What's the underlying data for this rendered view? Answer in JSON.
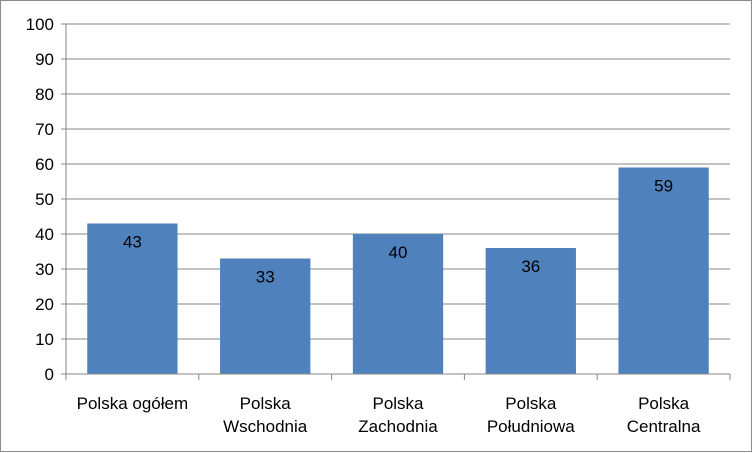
{
  "chart_data": {
    "type": "bar",
    "categories": [
      [
        "Polska ogółem"
      ],
      [
        "Polska",
        "Wschodnia"
      ],
      [
        "Polska",
        "Zachodnia"
      ],
      [
        "Polska",
        "Południowa"
      ],
      [
        "Polska",
        "Centralna"
      ]
    ],
    "values": [
      43,
      33,
      40,
      36,
      59
    ],
    "data_labels": [
      "43",
      "33",
      "40",
      "36",
      "59"
    ],
    "title": "",
    "xlabel": "",
    "ylabel": "",
    "ylim": [
      0,
      100
    ],
    "yticks": [
      0,
      10,
      20,
      30,
      40,
      50,
      60,
      70,
      80,
      90,
      100
    ],
    "ytick_labels": [
      "0",
      "10",
      "20",
      "30",
      "40",
      "50",
      "60",
      "70",
      "80",
      "90",
      "100"
    ],
    "grid": true,
    "legend": "none",
    "colors": {
      "bar": "#4f81bd",
      "grid": "#878787",
      "axis": "#878787"
    }
  }
}
